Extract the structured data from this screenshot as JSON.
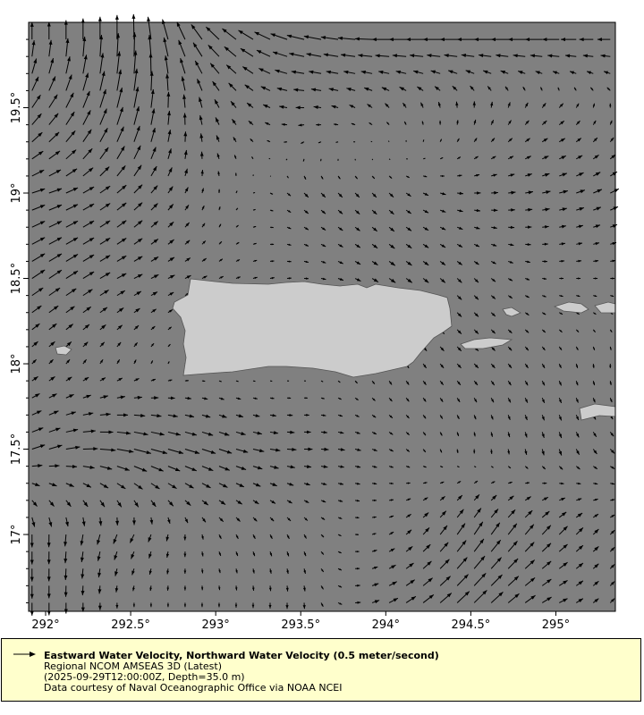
{
  "map": {
    "ocean_color": "#808080",
    "land_color": "#cccccc",
    "arrow_color": "#000000",
    "lon_range": [
      291.9,
      295.35
    ],
    "lat_range": [
      16.55,
      20.0
    ],
    "lon_ticks": [
      "292°",
      "292.5°",
      "293°",
      "293.5°",
      "294°",
      "294.5°",
      "295°"
    ],
    "lon_tick_values": [
      292,
      292.5,
      293,
      293.5,
      294,
      294.5,
      295
    ],
    "lat_ticks": [
      "19.5°",
      "19°",
      "18.5°",
      "18°",
      "17.5°",
      "17°"
    ],
    "lat_tick_values": [
      19.5,
      19,
      18.5,
      18,
      17.5,
      17
    ],
    "vector_grid_spacing_deg": 0.1,
    "reference_speed_m_s": 0.5,
    "velocity_field": {
      "lats": [
        19.9,
        19.5,
        19.0,
        18.5,
        18.0,
        17.5,
        17.0,
        16.6
      ],
      "lons": [
        292.0,
        292.5,
        293.0,
        293.5,
        294.0,
        294.5,
        295.0,
        295.3
      ],
      "u": [
        [
          0.0,
          0.0,
          -0.3,
          -0.4,
          -0.4,
          -0.4,
          -0.4,
          -0.3
        ],
        [
          0.2,
          0.1,
          -0.1,
          -0.2,
          -0.1,
          0.0,
          0.1,
          0.0
        ],
        [
          0.3,
          0.2,
          0.0,
          0.1,
          0.1,
          0.15,
          0.2,
          0.2
        ],
        [
          0.3,
          0.2,
          0.1,
          0.1,
          0.15,
          0.1,
          0.1,
          0.1
        ],
        [
          0.1,
          0.05,
          0.0,
          0.0,
          0.05,
          0.1,
          0.05,
          0.0
        ],
        [
          0.3,
          0.4,
          0.3,
          0.2,
          0.1,
          0.0,
          0.05,
          0.1
        ],
        [
          0.0,
          -0.1,
          0.05,
          0.05,
          0.1,
          0.2,
          0.2,
          0.1
        ],
        [
          0.0,
          0.0,
          0.0,
          0.0,
          0.2,
          0.3,
          0.2,
          0.1
        ]
      ],
      "v": [
        [
          0.4,
          0.6,
          0.3,
          0.1,
          0.0,
          0.0,
          0.0,
          0.0
        ],
        [
          0.3,
          0.5,
          0.2,
          0.0,
          0.1,
          0.15,
          0.1,
          0.1
        ],
        [
          0.1,
          0.2,
          0.1,
          -0.1,
          -0.1,
          0.0,
          0.05,
          0.1
        ],
        [
          0.2,
          0.1,
          0.05,
          0.0,
          -0.1,
          -0.1,
          0.0,
          0.0
        ],
        [
          0.1,
          0.1,
          0.0,
          0.0,
          -0.1,
          -0.1,
          -0.1,
          -0.1
        ],
        [
          0.1,
          -0.1,
          -0.1,
          0.0,
          -0.05,
          -0.1,
          -0.15,
          -0.1
        ],
        [
          -0.3,
          -0.2,
          -0.1,
          -0.1,
          0.05,
          0.3,
          0.2,
          0.1
        ],
        [
          -0.3,
          -0.1,
          -0.1,
          -0.15,
          0.1,
          0.3,
          0.1,
          0.1
        ]
      ]
    }
  },
  "legend": {
    "title": "Eastward Water Velocity, Northward Water Velocity (0.5 meter/second)",
    "line1": "Regional NCOM AMSEAS 3D (Latest)",
    "line2": "(2025-09-29T12:00:00Z, Depth=35.0 m)",
    "line3": "Data courtesy of Naval Oceanographic Office via NOAA NCEI"
  }
}
